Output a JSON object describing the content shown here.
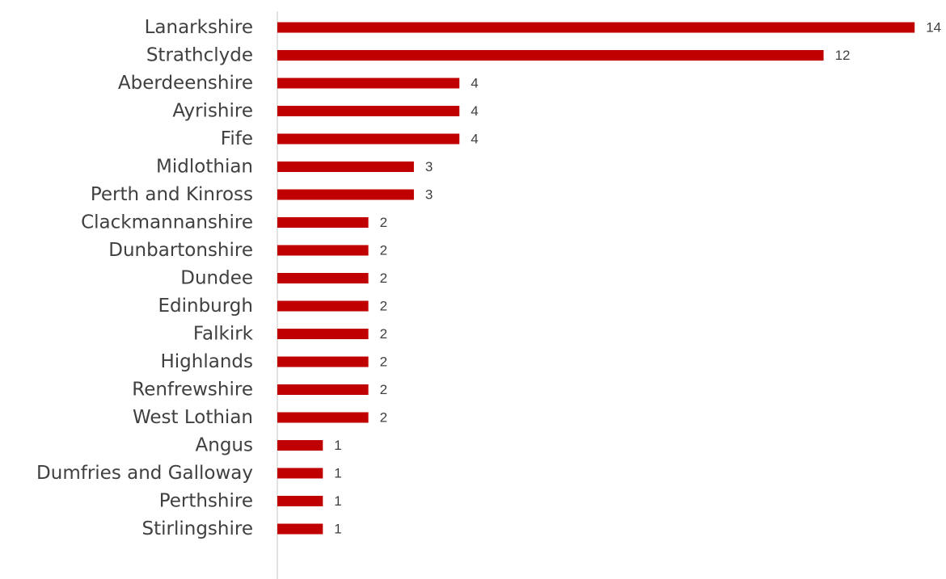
{
  "chart_data": {
    "type": "bar",
    "orientation": "horizontal",
    "title": "",
    "xlabel": "",
    "ylabel": "",
    "categories": [
      "Lanarkshire",
      "Strathclyde",
      "Aberdeenshire ",
      "Ayrishire",
      "Fife",
      "Midlothian",
      "Perth and Kinross",
      "Clackmannanshire",
      "Dunbartonshire",
      "Dundee",
      "Edinburgh",
      "Falkirk",
      "Highlands",
      "Renfrewshire",
      "West Lothian ",
      "Angus",
      "Dumfries and Galloway",
      "Perthshire",
      "Stirlingshire"
    ],
    "values": [
      14,
      12,
      4,
      4,
      4,
      3,
      3,
      2,
      2,
      2,
      2,
      2,
      2,
      2,
      2,
      1,
      1,
      1,
      1
    ],
    "value_labels": [
      "14",
      "12",
      "4",
      "4",
      "4",
      "3",
      "3",
      "2",
      "2",
      "2",
      "2",
      "2",
      "2",
      "2",
      "2",
      "1",
      "1",
      "1",
      "1"
    ],
    "xlim": [
      0,
      14
    ],
    "grid": false,
    "legend": "none",
    "data_labels": true,
    "colors": {
      "bar": "#C00000",
      "axis": "#D9D9D9",
      "text": "#404040"
    }
  }
}
